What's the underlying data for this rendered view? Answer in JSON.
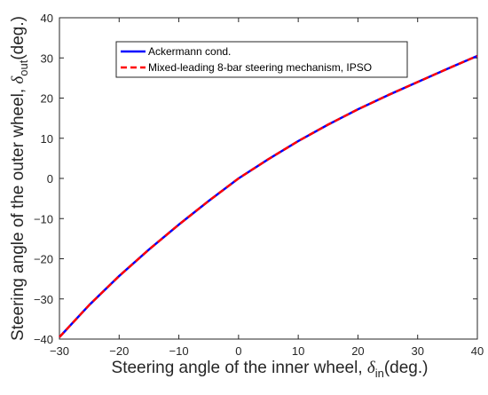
{
  "chart_data": {
    "type": "line",
    "xlabel": {
      "main": "Steering angle of the inner wheel, ",
      "symbol": "δ",
      "sub": "in",
      "unit": "(deg.)"
    },
    "ylabel": {
      "main": "Steering angle of the outer wheel, ",
      "symbol": "δ",
      "sub": "out",
      "unit": "(deg.)"
    },
    "xlim": [
      -30,
      40
    ],
    "ylim": [
      -40,
      40
    ],
    "xticks": [
      -30,
      -20,
      -10,
      0,
      10,
      20,
      30,
      40
    ],
    "yticks": [
      -40,
      -30,
      -20,
      -10,
      0,
      10,
      20,
      30,
      40
    ],
    "grid": false,
    "legend_position": "top-right",
    "series": [
      {
        "name": "Ackermann cond.",
        "color": "#0000ff",
        "style": "solid",
        "x": [
          -30,
          -25,
          -20,
          -15,
          -10,
          -5,
          0,
          5,
          10,
          15,
          20,
          25,
          30,
          35,
          40
        ],
        "y": [
          -39.5,
          -31.5,
          -24.3,
          -17.7,
          -11.5,
          -5.6,
          0,
          4.8,
          9.3,
          13.4,
          17.2,
          20.7,
          24.0,
          27.3,
          30.5
        ]
      },
      {
        "name": "Mixed-leading 8-bar steering mechanism, IPSO",
        "color": "#ff0000",
        "style": "dashed",
        "x": [
          -30,
          -25,
          -20,
          -15,
          -10,
          -5,
          0,
          5,
          10,
          15,
          20,
          25,
          30,
          35,
          40
        ],
        "y": [
          -39.5,
          -31.5,
          -24.3,
          -17.7,
          -11.5,
          -5.6,
          0,
          4.8,
          9.3,
          13.4,
          17.2,
          20.7,
          24.0,
          27.3,
          30.5
        ]
      }
    ]
  }
}
